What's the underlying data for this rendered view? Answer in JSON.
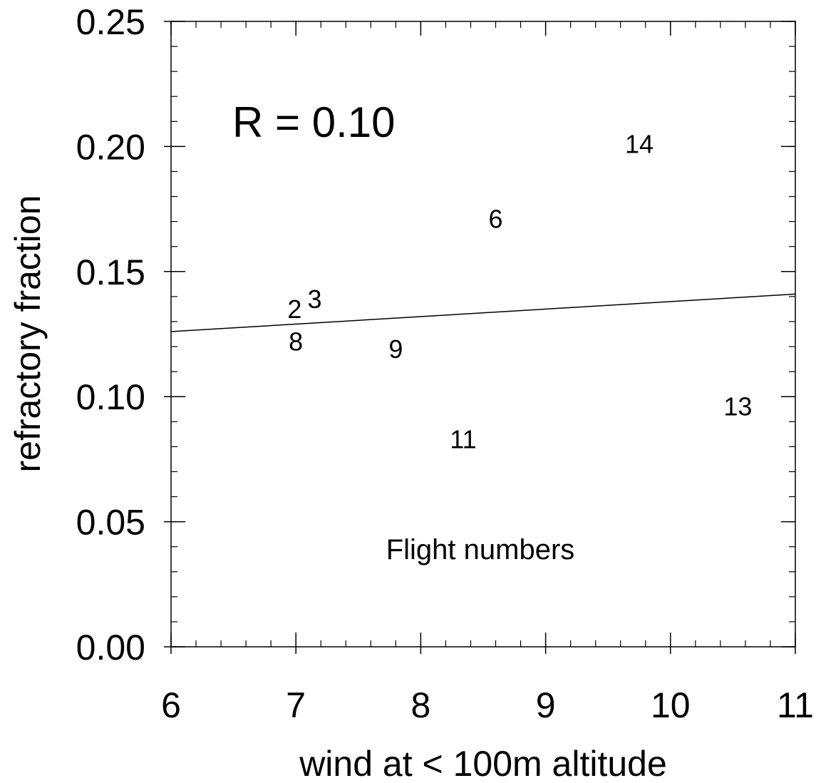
{
  "chart_data": {
    "type": "scatter",
    "xlabel": "wind at  < 100m altitude",
    "ylabel": "refractory fraction",
    "xlim": [
      6,
      11
    ],
    "ylim": [
      0,
      0.25
    ],
    "x_ticks": [
      6,
      7,
      8,
      9,
      10,
      11
    ],
    "x_tick_labels": [
      "6",
      "7",
      "8",
      "9",
      "10",
      "11"
    ],
    "y_ticks": [
      0,
      0.05,
      0.1,
      0.15,
      0.2,
      0.25
    ],
    "y_tick_labels": [
      "0.00",
      "0.05",
      "0.10",
      "0.15",
      "0.20",
      "0.25"
    ],
    "grid": false,
    "marker": "text labels (flight numbers)",
    "points": [
      {
        "label": "2",
        "x": 6.99,
        "y": 0.135
      },
      {
        "label": "3",
        "x": 7.15,
        "y": 0.139
      },
      {
        "label": "8",
        "x": 7.0,
        "y": 0.122
      },
      {
        "label": "9",
        "x": 7.8,
        "y": 0.119
      },
      {
        "label": "6",
        "x": 8.6,
        "y": 0.171
      },
      {
        "label": "11",
        "x": 8.34,
        "y": 0.083
      },
      {
        "label": "14",
        "x": 9.75,
        "y": 0.201
      },
      {
        "label": "13",
        "x": 10.54,
        "y": 0.096
      }
    ],
    "fit_line": {
      "x": [
        6,
        11
      ],
      "y": [
        0.126,
        0.141
      ]
    },
    "annotations": {
      "r_value": "R = 0.10",
      "legend_text": "Flight numbers"
    }
  }
}
